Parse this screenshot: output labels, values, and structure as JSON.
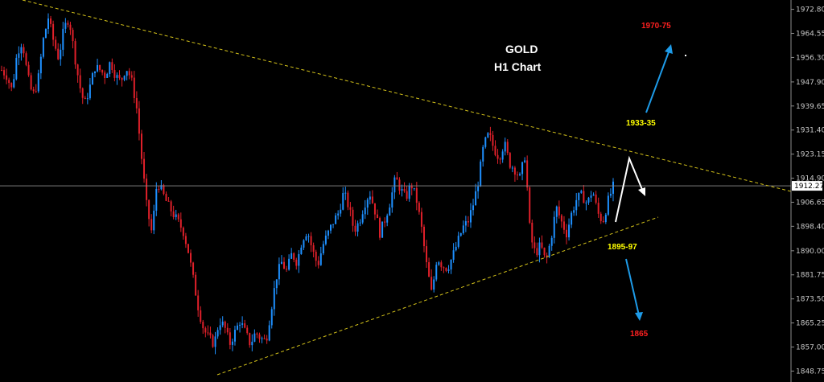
{
  "chart_data": {
    "type": "candlestick",
    "title": "GOLD",
    "subtitle": "H1 Chart",
    "ylim": [
      1845,
      1976
    ],
    "y_ticks": [
      "1972.80",
      "1964.55",
      "1956.30",
      "1947.90",
      "1939.65",
      "1931.40",
      "1923.15",
      "1914.90",
      "1906.65",
      "1898.40",
      "1890.00",
      "1881.75",
      "1873.50",
      "1865.25",
      "1857.00",
      "1848.75"
    ],
    "current_price": "1912.27",
    "annotations": {
      "upper_target": "1970-75",
      "resistance": "1933-35",
      "support": "1895-97",
      "lower_target": "1865"
    },
    "colors": {
      "background": "#000000",
      "bull_candle": "#1e90ff",
      "bear_candle": "#e0202a",
      "trendline": "#d4c21a",
      "axis_text": "#c8c8c8",
      "title_text": "#ffffff",
      "target_text": "#ff2020",
      "level_text": "#ffff00",
      "arrow_blue": "#1e9be8",
      "arrow_white": "#ffffff"
    },
    "close_path": [
      1952,
      1950,
      1945,
      1958,
      1962,
      1950,
      1943,
      1948,
      1962,
      1970,
      1962,
      1956,
      1966,
      1970,
      1958,
      1947,
      1940,
      1946,
      1953,
      1952,
      1950,
      1955,
      1950,
      1948,
      1953,
      1949,
      1940,
      1922,
      1905,
      1896,
      1914,
      1910,
      1906,
      1903,
      1900,
      1897,
      1890,
      1880,
      1870,
      1863,
      1860,
      1858,
      1866,
      1864,
      1858,
      1862,
      1866,
      1862,
      1858,
      1862,
      1860,
      1859,
      1870,
      1881,
      1886,
      1883,
      1889,
      1886,
      1894,
      1897,
      1890,
      1885,
      1892,
      1896,
      1900,
      1903,
      1910,
      1905,
      1897,
      1900,
      1906,
      1910,
      1904,
      1896,
      1901,
      1907,
      1915,
      1911,
      1908,
      1913,
      1908,
      1898,
      1885,
      1875,
      1888,
      1885,
      1884,
      1888,
      1893,
      1898,
      1900,
      1906,
      1914,
      1926,
      1930,
      1925,
      1922,
      1927,
      1920,
      1918,
      1915,
      1923,
      1895,
      1889,
      1892,
      1886,
      1894,
      1905,
      1900,
      1896,
      1903,
      1908,
      1909,
      1906,
      1911,
      1903,
      1900,
      1907,
      1912
    ]
  }
}
